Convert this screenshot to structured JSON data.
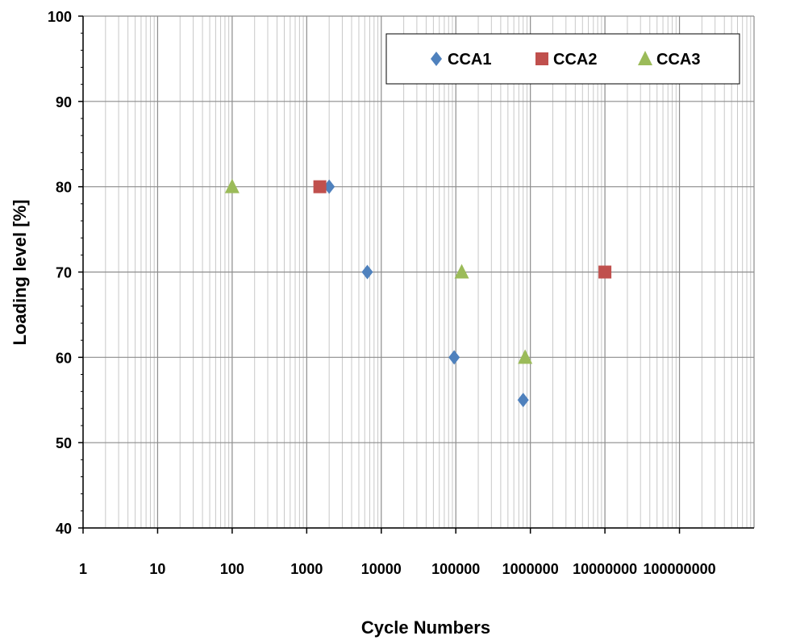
{
  "chart_data": {
    "type": "scatter",
    "title": "",
    "xlabel": "Cycle Numbers",
    "ylabel": "Loading level [%]",
    "x_scale": "log",
    "xlim": [
      1,
      1000000000
    ],
    "ylim": [
      40,
      100
    ],
    "x_ticks": [
      1,
      10,
      100,
      1000,
      10000,
      100000,
      1000000,
      10000000,
      100000000
    ],
    "x_tick_labels": [
      "1",
      "10",
      "100",
      "1000",
      "10000",
      "100000",
      "1000000",
      "10000000",
      "100000000"
    ],
    "y_ticks": [
      40,
      50,
      60,
      70,
      80,
      90,
      100
    ],
    "y_tick_labels": [
      "40",
      "50",
      "60",
      "70",
      "80",
      "90",
      "100"
    ],
    "grid": true,
    "legend_position": "top-right",
    "series": [
      {
        "name": "CCA1",
        "marker": "diamond",
        "color": "#4f81bd",
        "points": [
          {
            "x": 2000,
            "y": 80
          },
          {
            "x": 6500,
            "y": 70
          },
          {
            "x": 95000,
            "y": 60
          },
          {
            "x": 800000,
            "y": 55
          }
        ]
      },
      {
        "name": "CCA2",
        "marker": "square",
        "color": "#c0504d",
        "points": [
          {
            "x": 1500,
            "y": 80
          },
          {
            "x": 10000000,
            "y": 70
          }
        ]
      },
      {
        "name": "CCA3",
        "marker": "triangle",
        "color": "#9bbb59",
        "points": [
          {
            "x": 100,
            "y": 80
          },
          {
            "x": 120000,
            "y": 70
          },
          {
            "x": 850000,
            "y": 60
          }
        ]
      }
    ]
  }
}
